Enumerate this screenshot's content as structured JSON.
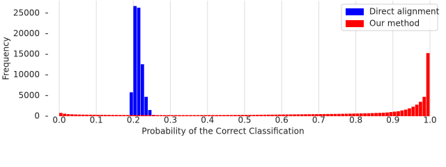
{
  "chart_data": {
    "type": "histogram",
    "x_label": "Probability of the Correct Classification",
    "y_label": "Frequency",
    "bins": [
      0,
      0.01,
      0.02,
      0.03,
      0.04,
      0.05,
      0.06,
      0.07,
      0.08,
      0.09,
      0.1,
      0.11,
      0.12,
      0.13,
      0.14,
      0.15,
      0.16,
      0.17,
      0.18,
      0.19,
      0.2,
      0.21,
      0.22,
      0.23,
      0.24,
      0.25,
      0.26,
      0.27,
      0.28,
      0.29,
      0.3,
      0.31,
      0.32,
      0.33,
      0.34,
      0.35,
      0.36,
      0.37,
      0.38,
      0.39,
      0.4,
      0.41,
      0.42,
      0.43,
      0.44,
      0.45,
      0.46,
      0.47,
      0.48,
      0.49,
      0.5,
      0.51,
      0.52,
      0.53,
      0.54,
      0.55,
      0.56,
      0.57,
      0.58,
      0.59,
      0.6,
      0.61,
      0.62,
      0.63,
      0.64,
      0.65,
      0.66,
      0.67,
      0.68,
      0.69,
      0.7,
      0.71,
      0.72,
      0.73,
      0.74,
      0.75,
      0.76,
      0.77,
      0.78,
      0.79,
      0.8,
      0.81,
      0.82,
      0.83,
      0.84,
      0.85,
      0.86,
      0.87,
      0.88,
      0.89,
      0.9,
      0.91,
      0.92,
      0.93,
      0.94,
      0.95,
      0.96,
      0.97,
      0.98,
      0.99,
      1
    ],
    "series": [
      {
        "name": "Direct alignment",
        "color": "#0000ff",
        "values": [
          0,
          0,
          0,
          0,
          0,
          0,
          0,
          0,
          0,
          0,
          0,
          0,
          0,
          0,
          0,
          0,
          0,
          0,
          0,
          5800,
          26700,
          26300,
          12600,
          4700,
          1500,
          300,
          0,
          0,
          0,
          0,
          0,
          0,
          0,
          0,
          0,
          0,
          0,
          0,
          0,
          0,
          0,
          0,
          0,
          0,
          0,
          0,
          0,
          0,
          0,
          0,
          0,
          0,
          0,
          0,
          0,
          0,
          0,
          0,
          0,
          0,
          0,
          0,
          0,
          0,
          0,
          0,
          0,
          0,
          0,
          0,
          0,
          0,
          0,
          0,
          0,
          0,
          0,
          0,
          0,
          0,
          0,
          0,
          0,
          0,
          0,
          0,
          0,
          0,
          0,
          0,
          0,
          0,
          0,
          0,
          0,
          0,
          0,
          0,
          0,
          0
        ]
      },
      {
        "name": "Our method",
        "color": "#ff0000",
        "values": [
          800,
          600,
          500,
          450,
          420,
          400,
          380,
          370,
          360,
          350,
          340,
          330,
          320,
          310,
          300,
          300,
          290,
          290,
          280,
          280,
          280,
          270,
          270,
          270,
          270,
          260,
          260,
          260,
          260,
          260,
          260,
          260,
          260,
          260,
          260,
          260,
          260,
          260,
          270,
          270,
          270,
          270,
          280,
          280,
          280,
          290,
          290,
          300,
          300,
          310,
          310,
          320,
          330,
          340,
          350,
          360,
          370,
          380,
          390,
          400,
          410,
          420,
          430,
          440,
          450,
          460,
          470,
          480,
          490,
          500,
          510,
          520,
          530,
          540,
          550,
          560,
          580,
          600,
          620,
          640,
          650,
          680,
          700,
          720,
          750,
          780,
          810,
          850,
          900,
          1000,
          1100,
          1200,
          1400,
          1600,
          1900,
          2300,
          2800,
          3500,
          4700,
          15300
        ]
      }
    ],
    "xlim": [
      -0.03,
      1.03
    ],
    "ylim": [
      0,
      28000
    ],
    "xticks": [
      {
        "value": 0,
        "label": "0.0"
      },
      0.1,
      0.2,
      0.3,
      0.4,
      0.5,
      0.6,
      0.7,
      0.8,
      0.9,
      {
        "value": 1,
        "label": "1.0"
      }
    ],
    "yticks": [
      0,
      5000,
      10000,
      15000,
      20000,
      25000
    ],
    "grid": "x",
    "legend": "upper right"
  }
}
